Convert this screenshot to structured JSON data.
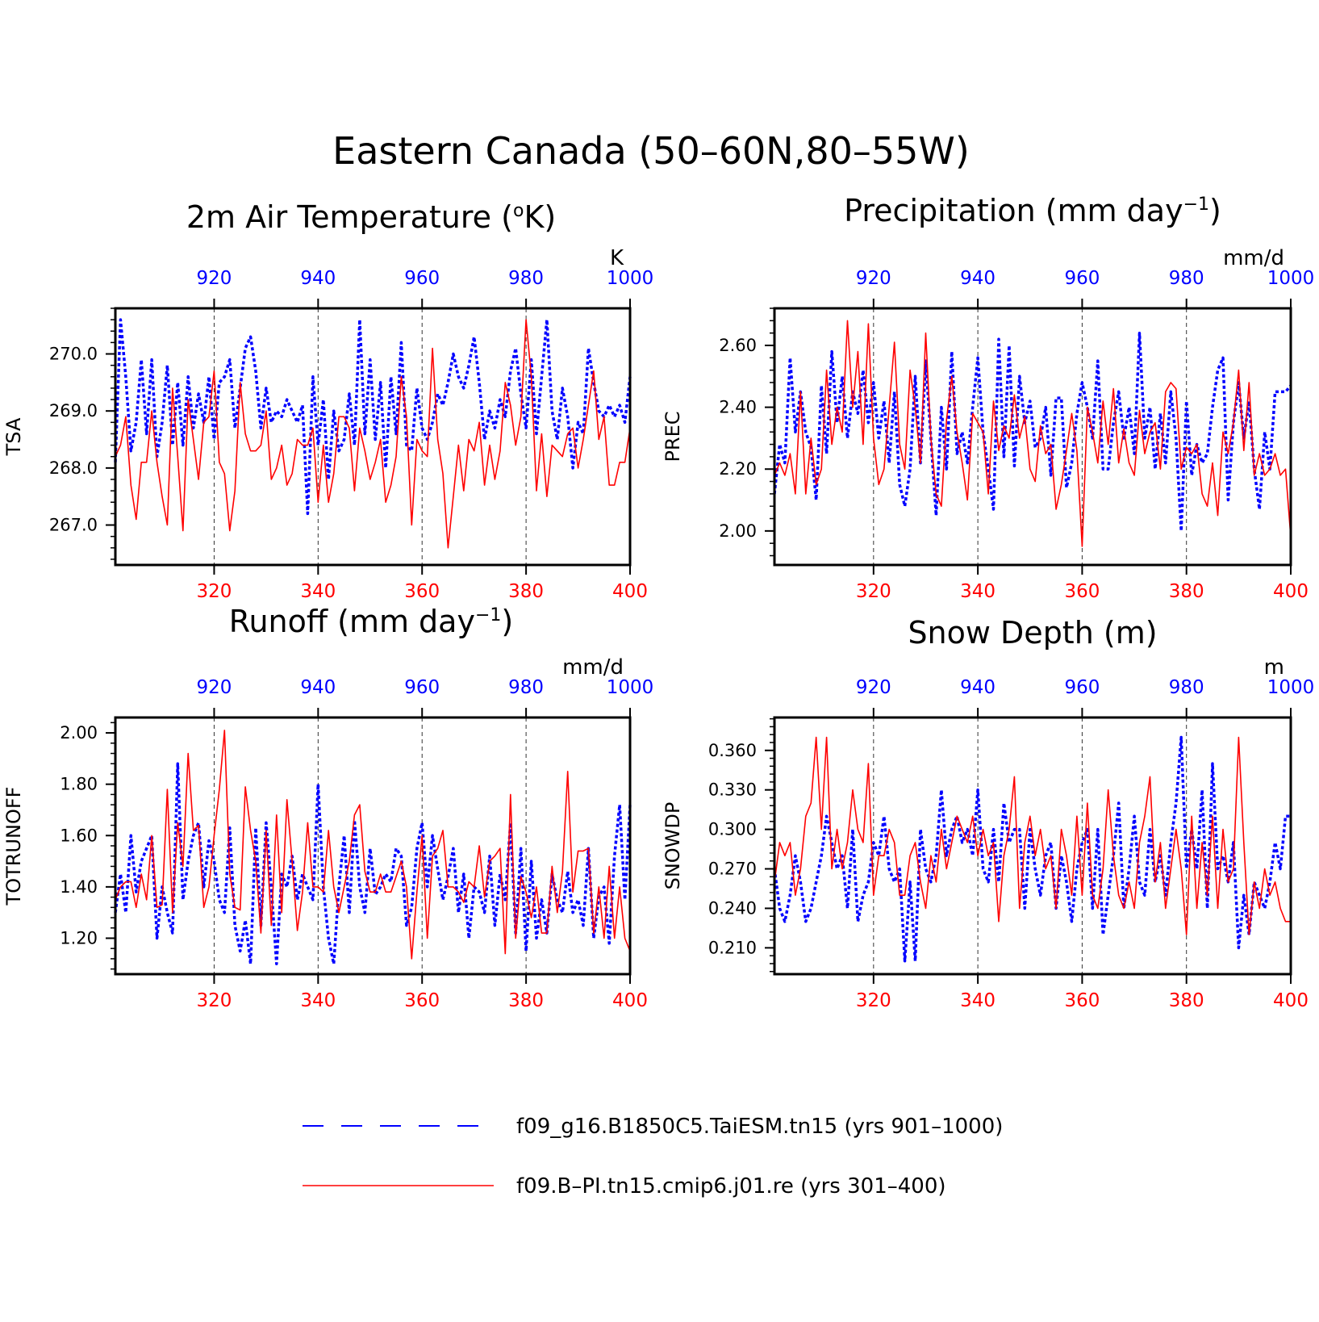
{
  "figure": {
    "title": "Eastern Canada (50–60N,80–55W)",
    "legend": [
      {
        "label": "f09_g16.B1850C5.TaiESM.tn15 (yrs 901–1000)",
        "color": "#0000ff",
        "style": "dashed"
      },
      {
        "label": "f09.B–PI.tn15.cmip6.j01.re (yrs 301–400)",
        "color": "#ff0000",
        "style": "solid"
      }
    ]
  },
  "chart_data": [
    {
      "type": "line",
      "title_text": "2m Air Temperature (",
      "title_symbol": "o",
      "title_after": "K)",
      "unit": "K",
      "ylabel": "TSA",
      "x_bottom": {
        "range": [
          301,
          400
        ],
        "ticks": [
          320,
          340,
          360,
          380,
          400
        ]
      },
      "x_top": {
        "range": [
          901,
          1000
        ],
        "ticks": [
          920,
          940,
          960,
          980,
          1000
        ]
      },
      "ylim": [
        266.3,
        270.8
      ],
      "yticks": [
        267.0,
        268.0,
        269.0,
        270.0
      ],
      "ytick_labels": [
        "267.0",
        "268.0",
        "269.0",
        "270.0"
      ],
      "grid": "vertical dashed",
      "series": [
        {
          "color": "#0000ff",
          "style": "dashed",
          "x_axis": "top",
          "x_start": 901,
          "values": [
            268.1,
            270.6,
            269.6,
            268.3,
            268.8,
            269.9,
            268.6,
            269.9,
            268.2,
            268.8,
            269.8,
            268.4,
            269.5,
            268.4,
            269.6,
            268.7,
            269.3,
            268.8,
            269.6,
            268.5,
            269.5,
            269.6,
            269.9,
            268.7,
            269.4,
            270.1,
            270.3,
            269.7,
            268.7,
            269.4,
            268.8,
            269.0,
            268.9,
            269.2,
            269.0,
            268.8,
            269.1,
            267.2,
            269.6,
            268.4,
            269.2,
            267.8,
            269.0,
            268.3,
            268.5,
            269.3,
            268.4,
            270.6,
            268.6,
            269.9,
            268.5,
            269.5,
            268.0,
            269.6,
            268.6,
            270.2,
            268.4,
            268.3,
            269.4,
            268.7,
            268.5,
            268.8,
            269.3,
            269.1,
            269.5,
            270.0,
            269.6,
            269.4,
            269.8,
            270.3,
            269.5,
            268.5,
            269.0,
            268.7,
            269.2,
            268.9,
            269.7,
            270.1,
            269.3,
            268.7,
            269.9,
            268.6,
            269.6,
            270.6,
            269.0,
            268.5,
            269.4,
            268.9,
            268.0,
            268.8,
            268.6,
            270.1,
            269.5,
            269.0,
            268.9,
            269.1,
            268.9,
            269.1,
            268.8,
            269.6
          ]
        },
        {
          "color": "#ff0000",
          "style": "solid",
          "x_axis": "bottom",
          "x_start": 301,
          "values": [
            268.2,
            268.4,
            268.9,
            267.7,
            267.1,
            268.1,
            268.1,
            269.0,
            268.1,
            267.5,
            267.0,
            269.4,
            268.2,
            266.9,
            269.2,
            268.5,
            267.8,
            268.8,
            268.9,
            269.7,
            268.1,
            267.9,
            266.9,
            267.6,
            269.5,
            268.6,
            268.3,
            268.3,
            268.4,
            269.0,
            267.8,
            268.0,
            268.4,
            267.7,
            267.9,
            268.5,
            268.4,
            268.4,
            268.7,
            267.4,
            268.4,
            267.4,
            267.9,
            268.9,
            268.9,
            268.7,
            267.6,
            268.7,
            268.3,
            267.8,
            268.1,
            268.5,
            267.4,
            267.7,
            268.2,
            269.6,
            268.9,
            267.0,
            268.5,
            268.3,
            268.2,
            270.1,
            268.5,
            267.9,
            266.6,
            267.5,
            268.4,
            267.6,
            268.5,
            268.3,
            268.8,
            267.7,
            268.4,
            267.8,
            268.3,
            269.5,
            269.1,
            268.4,
            268.9,
            270.6,
            269.6,
            267.6,
            268.6,
            267.5,
            268.4,
            268.3,
            268.2,
            268.6,
            268.7,
            268.0,
            268.5,
            269.1,
            269.7,
            268.5,
            268.9,
            267.7,
            267.7,
            268.1,
            268.1,
            268.7
          ]
        }
      ]
    },
    {
      "type": "line",
      "title_text": "Precipitation (mm day",
      "title_symbol": "−1",
      "title_after": ")",
      "unit": "mm/d",
      "ylabel": "PREC",
      "x_bottom": {
        "range": [
          301,
          400
        ],
        "ticks": [
          320,
          340,
          360,
          380,
          400
        ]
      },
      "x_top": {
        "range": [
          901,
          1000
        ],
        "ticks": [
          920,
          940,
          960,
          980,
          1000
        ]
      },
      "ylim": [
        1.89,
        2.72
      ],
      "yticks": [
        2.0,
        2.2,
        2.4,
        2.6
      ],
      "ytick_labels": [
        "2.00",
        "2.20",
        "2.40",
        "2.60"
      ],
      "grid": "vertical dashed",
      "series": [
        {
          "color": "#0000ff",
          "style": "dashed",
          "x_axis": "top",
          "x_start": 901,
          "values": [
            2.12,
            2.28,
            2.22,
            2.56,
            2.32,
            2.45,
            2.32,
            2.27,
            2.1,
            2.47,
            2.25,
            2.58,
            2.35,
            2.5,
            2.3,
            2.45,
            2.38,
            2.52,
            2.35,
            2.48,
            2.3,
            2.42,
            2.22,
            2.45,
            2.15,
            2.08,
            2.2,
            2.5,
            2.22,
            2.55,
            2.3,
            2.05,
            2.4,
            2.2,
            2.58,
            2.25,
            2.32,
            2.22,
            2.4,
            2.56,
            2.32,
            2.2,
            2.07,
            2.62,
            2.24,
            2.6,
            2.21,
            2.5,
            2.35,
            2.42,
            2.27,
            2.3,
            2.4,
            2.18,
            2.43,
            2.43,
            2.14,
            2.22,
            2.38,
            2.48,
            2.4,
            2.3,
            2.55,
            2.2,
            2.2,
            2.35,
            2.45,
            2.3,
            2.4,
            2.25,
            2.64,
            2.3,
            2.4,
            2.2,
            2.38,
            2.22,
            2.45,
            2.3,
            2.0,
            2.42,
            2.18,
            2.28,
            2.22,
            2.25,
            2.4,
            2.52,
            2.56,
            2.1,
            2.35,
            2.48,
            2.3,
            2.42,
            2.2,
            2.07,
            2.32,
            2.2,
            2.45,
            2.45,
            2.45,
            2.47
          ]
        },
        {
          "color": "#ff0000",
          "style": "solid",
          "x_axis": "bottom",
          "x_start": 301,
          "values": [
            2.18,
            2.22,
            2.18,
            2.25,
            2.12,
            2.45,
            2.12,
            2.3,
            2.15,
            2.2,
            2.52,
            2.28,
            2.4,
            2.32,
            2.68,
            2.4,
            2.58,
            2.28,
            2.67,
            2.3,
            2.15,
            2.2,
            2.4,
            2.61,
            2.28,
            2.2,
            2.52,
            2.4,
            2.22,
            2.64,
            2.3,
            2.12,
            2.08,
            2.36,
            2.5,
            2.32,
            2.22,
            2.1,
            2.38,
            2.35,
            2.32,
            2.12,
            2.42,
            2.26,
            2.34,
            2.3,
            2.44,
            2.3,
            2.37,
            2.2,
            2.16,
            2.34,
            2.25,
            2.28,
            2.07,
            2.15,
            2.26,
            2.38,
            2.26,
            1.95,
            2.4,
            2.32,
            2.22,
            2.42,
            2.28,
            2.46,
            2.22,
            2.33,
            2.22,
            2.18,
            2.39,
            2.25,
            2.32,
            2.35,
            2.2,
            2.45,
            2.48,
            2.46,
            2.2,
            2.27,
            2.25,
            2.28,
            2.12,
            2.08,
            2.22,
            2.05,
            2.32,
            2.25,
            2.35,
            2.52,
            2.26,
            2.48,
            2.18,
            2.25,
            2.18,
            2.2,
            2.25,
            2.18,
            2.2,
            1.98
          ]
        }
      ]
    },
    {
      "type": "line",
      "title_text": "Runoff (mm day",
      "title_symbol": "−1",
      "title_after": ")",
      "unit": "mm/d",
      "ylabel": "TOTRUNOFF",
      "x_bottom": {
        "range": [
          301,
          400
        ],
        "ticks": [
          320,
          340,
          360,
          380,
          400
        ]
      },
      "x_top": {
        "range": [
          901,
          1000
        ],
        "ticks": [
          920,
          940,
          960,
          980,
          1000
        ]
      },
      "ylim": [
        1.06,
        2.06
      ],
      "yticks": [
        1.2,
        1.4,
        1.6,
        1.8,
        2.0
      ],
      "ytick_labels": [
        "1.20",
        "1.40",
        "1.60",
        "1.80",
        "2.00"
      ],
      "grid": "vertical dashed",
      "series": [
        {
          "color": "#0000ff",
          "style": "dashed",
          "x_axis": "top",
          "x_start": 901,
          "values": [
            1.3,
            1.45,
            1.3,
            1.6,
            1.38,
            1.5,
            1.55,
            1.6,
            1.2,
            1.4,
            1.3,
            1.22,
            1.88,
            1.35,
            1.5,
            1.6,
            1.65,
            1.4,
            1.58,
            1.5,
            1.35,
            1.3,
            1.63,
            1.25,
            1.15,
            1.27,
            1.1,
            1.63,
            1.25,
            1.65,
            1.4,
            1.1,
            1.45,
            1.4,
            1.52,
            1.35,
            1.45,
            1.4,
            1.35,
            1.8,
            1.4,
            1.2,
            1.1,
            1.4,
            1.6,
            1.3,
            1.66,
            1.4,
            1.3,
            1.55,
            1.37,
            1.4,
            1.45,
            1.42,
            1.55,
            1.52,
            1.25,
            1.32,
            1.55,
            1.65,
            1.4,
            1.6,
            1.47,
            1.35,
            1.44,
            1.55,
            1.3,
            1.45,
            1.2,
            1.4,
            1.38,
            1.3,
            1.52,
            1.25,
            1.45,
            1.35,
            1.65,
            1.22,
            1.55,
            1.15,
            1.5,
            1.2,
            1.35,
            1.22,
            1.45,
            1.35,
            1.3,
            1.46,
            1.3,
            1.35,
            1.25,
            1.55,
            1.2,
            1.36,
            1.4,
            1.18,
            1.52,
            1.72,
            1.35,
            1.72
          ]
        },
        {
          "color": "#ff0000",
          "style": "solid",
          "x_axis": "bottom",
          "x_start": 301,
          "values": [
            1.35,
            1.4,
            1.42,
            1.42,
            1.32,
            1.45,
            1.35,
            1.6,
            1.32,
            1.33,
            1.78,
            1.3,
            1.65,
            1.48,
            1.92,
            1.62,
            1.64,
            1.32,
            1.4,
            1.6,
            1.78,
            2.01,
            1.45,
            1.32,
            1.31,
            1.79,
            1.62,
            1.5,
            1.22,
            1.62,
            1.25,
            1.68,
            1.3,
            1.74,
            1.5,
            1.23,
            1.38,
            1.65,
            1.4,
            1.4,
            1.38,
            1.62,
            1.4,
            1.3,
            1.4,
            1.5,
            1.68,
            1.72,
            1.46,
            1.38,
            1.38,
            1.45,
            1.38,
            1.38,
            1.44,
            1.5,
            1.4,
            1.12,
            1.38,
            1.6,
            1.2,
            1.52,
            1.55,
            1.62,
            1.4,
            1.4,
            1.38,
            1.34,
            1.42,
            1.4,
            1.56,
            1.36,
            1.5,
            1.52,
            1.55,
            1.14,
            1.76,
            1.2,
            1.44,
            1.38,
            1.28,
            1.4,
            1.22,
            1.22,
            1.48,
            1.3,
            1.46,
            1.85,
            1.38,
            1.54,
            1.54,
            1.55,
            1.22,
            1.4,
            1.2,
            1.48,
            1.2,
            1.4,
            1.2,
            1.15
          ]
        }
      ]
    },
    {
      "type": "line",
      "title_text": "Snow Depth (m)",
      "title_symbol": "",
      "title_after": "",
      "unit": "m",
      "ylabel": "SNOWDP",
      "x_bottom": {
        "range": [
          301,
          400
        ],
        "ticks": [
          320,
          340,
          360,
          380,
          400
        ]
      },
      "x_top": {
        "range": [
          901,
          1000
        ],
        "ticks": [
          920,
          940,
          960,
          980,
          1000
        ]
      },
      "ylim": [
        0.19,
        0.385
      ],
      "yticks": [
        0.21,
        0.24,
        0.27,
        0.3,
        0.33,
        0.36
      ],
      "ytick_labels": [
        "0.210",
        "0.240",
        "0.270",
        "0.300",
        "0.330",
        "0.360"
      ],
      "grid": "vertical dashed",
      "series": [
        {
          "color": "#0000ff",
          "style": "dashed",
          "x_axis": "top",
          "x_start": 901,
          "values": [
            0.27,
            0.24,
            0.23,
            0.25,
            0.28,
            0.26,
            0.23,
            0.24,
            0.26,
            0.28,
            0.31,
            0.29,
            0.27,
            0.28,
            0.24,
            0.3,
            0.23,
            0.25,
            0.26,
            0.29,
            0.28,
            0.31,
            0.27,
            0.26,
            0.27,
            0.2,
            0.26,
            0.2,
            0.3,
            0.27,
            0.26,
            0.28,
            0.33,
            0.28,
            0.3,
            0.31,
            0.29,
            0.3,
            0.28,
            0.33,
            0.27,
            0.26,
            0.3,
            0.26,
            0.32,
            0.29,
            0.3,
            0.3,
            0.24,
            0.3,
            0.27,
            0.25,
            0.28,
            0.29,
            0.24,
            0.28,
            0.26,
            0.23,
            0.27,
            0.29,
            0.3,
            0.24,
            0.3,
            0.22,
            0.25,
            0.28,
            0.32,
            0.24,
            0.27,
            0.31,
            0.26,
            0.25,
            0.3,
            0.26,
            0.28,
            0.25,
            0.29,
            0.32,
            0.37,
            0.27,
            0.3,
            0.27,
            0.33,
            0.24,
            0.35,
            0.27,
            0.28,
            0.26,
            0.29,
            0.21,
            0.25,
            0.22,
            0.26,
            0.25,
            0.24,
            0.26,
            0.29,
            0.27,
            0.31,
            0.31
          ]
        },
        {
          "color": "#ff0000",
          "style": "solid",
          "x_axis": "bottom",
          "x_start": 301,
          "values": [
            0.26,
            0.29,
            0.28,
            0.29,
            0.25,
            0.27,
            0.31,
            0.32,
            0.37,
            0.3,
            0.37,
            0.27,
            0.3,
            0.27,
            0.29,
            0.33,
            0.3,
            0.29,
            0.35,
            0.25,
            0.28,
            0.28,
            0.3,
            0.29,
            0.25,
            0.25,
            0.28,
            0.29,
            0.26,
            0.24,
            0.28,
            0.26,
            0.3,
            0.27,
            0.29,
            0.31,
            0.3,
            0.29,
            0.31,
            0.28,
            0.3,
            0.28,
            0.29,
            0.23,
            0.28,
            0.3,
            0.34,
            0.24,
            0.29,
            0.31,
            0.28,
            0.3,
            0.27,
            0.28,
            0.24,
            0.3,
            0.28,
            0.25,
            0.31,
            0.25,
            0.32,
            0.25,
            0.24,
            0.27,
            0.33,
            0.28,
            0.25,
            0.24,
            0.26,
            0.24,
            0.29,
            0.31,
            0.34,
            0.26,
            0.29,
            0.24,
            0.27,
            0.3,
            0.27,
            0.22,
            0.31,
            0.24,
            0.29,
            0.25,
            0.31,
            0.24,
            0.3,
            0.26,
            0.27,
            0.37,
            0.29,
            0.22,
            0.26,
            0.24,
            0.27,
            0.25,
            0.26,
            0.24,
            0.23,
            0.23
          ]
        }
      ]
    }
  ]
}
